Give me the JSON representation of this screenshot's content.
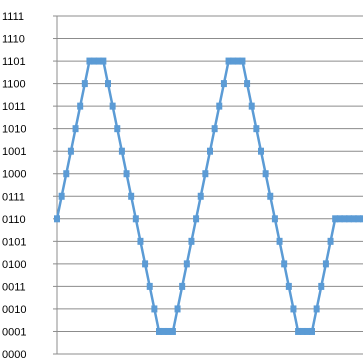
{
  "chart_data": {
    "type": "line",
    "title": "",
    "xlabel": "",
    "ylabel": "",
    "grid": true,
    "legend": "none",
    "y_tick_labels": [
      "0000",
      "0001",
      "0010",
      "0011",
      "0100",
      "0101",
      "0110",
      "0111",
      "1000",
      "1001",
      "1010",
      "1011",
      "1100",
      "1101",
      "1110",
      "1111"
    ],
    "ylim": [
      0,
      15
    ],
    "xlim": [
      0,
      66
    ],
    "series": [
      {
        "marker": "square",
        "color": "#5b9bd5",
        "x": [
          0,
          1,
          2,
          3,
          4,
          5,
          6,
          7,
          8,
          9,
          10,
          11,
          12,
          13,
          14,
          15,
          16,
          17,
          18,
          19,
          20,
          21,
          22,
          23,
          24,
          25,
          26,
          27,
          28,
          29,
          30,
          31,
          32,
          33,
          34,
          35,
          36,
          37,
          38,
          39,
          40,
          41,
          42,
          43,
          44,
          45,
          46,
          47,
          48,
          49,
          50,
          51,
          52,
          53,
          54,
          55,
          56,
          57,
          58,
          59,
          60,
          61,
          62,
          63,
          64,
          65,
          66
        ],
        "y": [
          6,
          7,
          8,
          9,
          10,
          11,
          12,
          13,
          13,
          13,
          13,
          12,
          11,
          10,
          9,
          8,
          7,
          6,
          5,
          4,
          3,
          2,
          1,
          1,
          1,
          1,
          2,
          3,
          4,
          5,
          6,
          7,
          8,
          9,
          10,
          11,
          12,
          13,
          13,
          13,
          13,
          12,
          11,
          10,
          9,
          8,
          7,
          6,
          5,
          4,
          3,
          2,
          1,
          1,
          1,
          1,
          2,
          3,
          4,
          5,
          6,
          6,
          6,
          6,
          6,
          6,
          6
        ]
      }
    ]
  }
}
